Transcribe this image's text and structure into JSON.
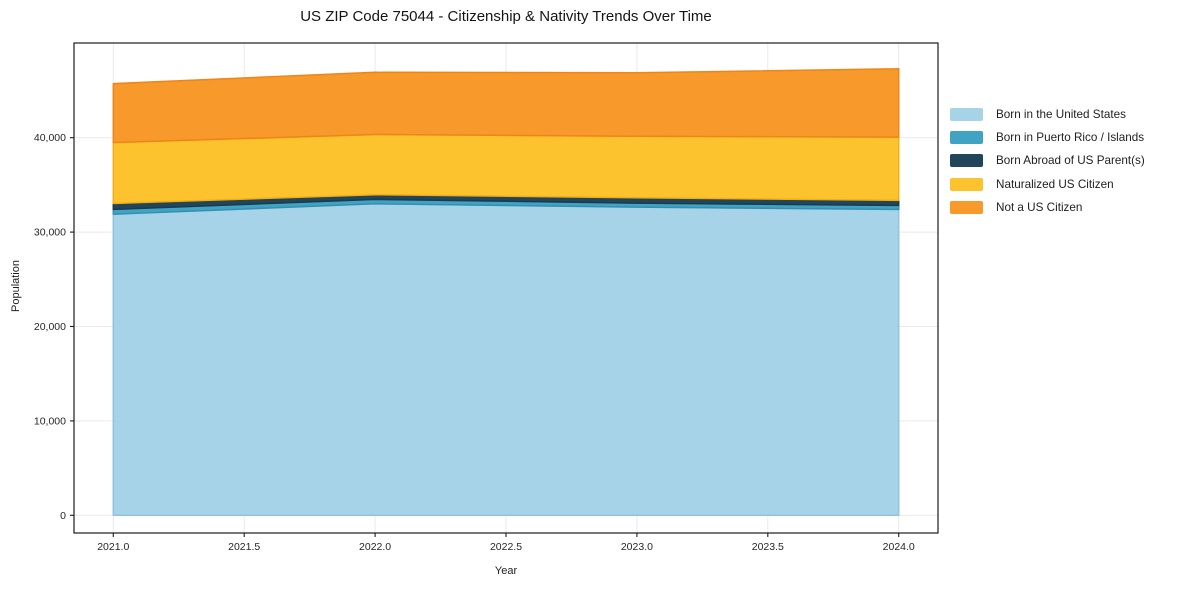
{
  "title": "US ZIP Code 75044 - Citizenship & Nativity Trends Over Time",
  "chart_data": {
    "type": "area",
    "stacked": true,
    "title": "US ZIP Code 75044 - Citizenship & Nativity Trends Over Time",
    "xlabel": "Year",
    "ylabel": "Population",
    "x": [
      2021,
      2022,
      2023,
      2024
    ],
    "series": [
      {
        "name": "Born in the United States",
        "values": [
          31900,
          33000,
          32650,
          32400
        ],
        "color": "#a6d3e8",
        "edge": "#8ec4dd"
      },
      {
        "name": "Born in Puerto Rico / Islands",
        "values": [
          500,
          460,
          420,
          430
        ],
        "color": "#41a3c3",
        "edge": "#3590b0"
      },
      {
        "name": "Born Abroad of US Parent(s)",
        "values": [
          630,
          500,
          570,
          530
        ],
        "color": "#21465c",
        "edge": "#1a3a4e"
      },
      {
        "name": "Naturalized US Citizen",
        "values": [
          6460,
          6380,
          6520,
          6700
        ],
        "color": "#fdc32f",
        "edge": "#f4ae10"
      },
      {
        "name": "Not a US Citizen",
        "values": [
          6240,
          6590,
          6710,
          7240
        ],
        "color": "#f8992b",
        "edge": "#ef8516"
      }
    ],
    "totals": [
      45730,
      46930,
      46870,
      47300
    ],
    "x_tick_values": [
      2021.0,
      2021.5,
      2022.0,
      2022.5,
      2023.0,
      2023.5,
      2024.0
    ],
    "x_tick_labels": [
      "2021.0",
      "2021.5",
      "2022.0",
      "2022.5",
      "2023.0",
      "2023.5",
      "2024.0"
    ],
    "y_tick_values": [
      0,
      10000,
      20000,
      30000,
      40000
    ],
    "y_tick_labels": [
      "0",
      "10,000",
      "20,000",
      "30,000",
      "40,000"
    ],
    "xlim": [
      2020.85,
      2024.15
    ],
    "ylim": [
      -1875,
      50030
    ],
    "grid": true,
    "grid_color": "#eaeaea",
    "spine_color": "#1c1c1c",
    "legend_position": "right-outside"
  }
}
